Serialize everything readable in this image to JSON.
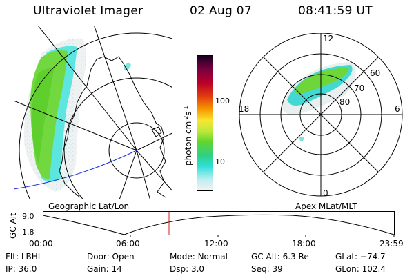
{
  "header": {
    "instrument": "Ultraviolet Imager",
    "date": "02 Aug 07",
    "time": "08:41:59 UT"
  },
  "left_panel": {
    "label": "Geographic Lat/Lon"
  },
  "right_panel": {
    "label": "Apex MLat/MLT",
    "mlt_labels": {
      "top": "12",
      "bottom": "0",
      "left": "18",
      "right": "6"
    },
    "lat_labels": [
      "60",
      "70",
      "80"
    ]
  },
  "colorbar": {
    "label": "photon cm",
    "label_exp1": "-2",
    "label_mid": "s",
    "label_exp2": "-1",
    "tick_100": "100",
    "tick_10": "10",
    "colors": [
      "#000000",
      "#3a0038",
      "#7a0040",
      "#b8002a",
      "#e23b10",
      "#f89a00",
      "#f7e630",
      "#bde83a",
      "#5fd62d",
      "#2fcf86",
      "#2ee0d8",
      "#bfeef2",
      "#f2f2f2"
    ]
  },
  "timeline": {
    "ylabel": "GC Alt",
    "ytick_top": "9.0",
    "ytick_bottom": "1.8",
    "x_labels": [
      "00:00",
      "06:00",
      "12:00",
      "18:00",
      "23:59"
    ]
  },
  "status": {
    "row1": [
      {
        "label": "Flt:",
        "value": "LBHL"
      },
      {
        "label": "Door:",
        "value": "Open"
      },
      {
        "label": "Mode:",
        "value": "Normal"
      },
      {
        "label": "GC Alt:",
        "value": "6.3 Re"
      },
      {
        "label": "GLat:",
        "value": "−74.7"
      }
    ],
    "row2": [
      {
        "label": "IP:",
        "value": "36.0"
      },
      {
        "label": "Gain:",
        "value": "14"
      },
      {
        "label": "Dsp:",
        "value": "3.0"
      },
      {
        "label": "Seq:",
        "value": "39"
      },
      {
        "label": "GLon:",
        "value": "102.4"
      }
    ]
  }
}
